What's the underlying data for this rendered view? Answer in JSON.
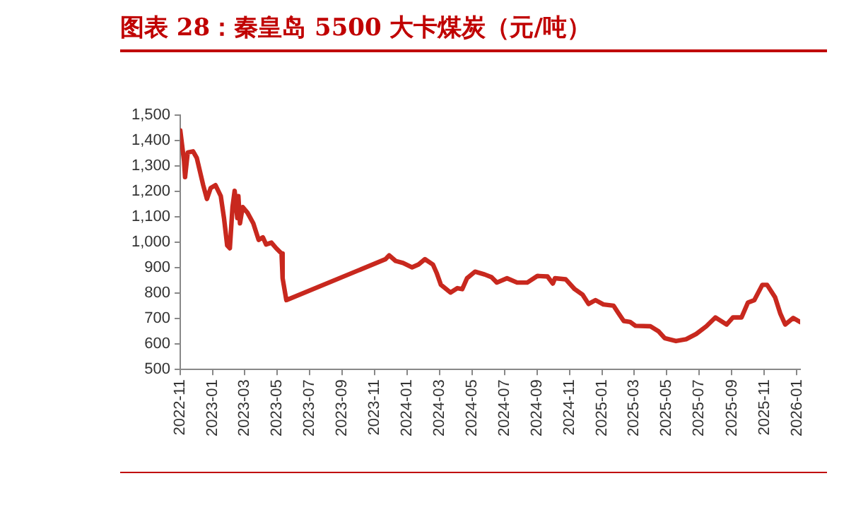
{
  "chart_data": {
    "type": "line",
    "title": "图表 28：秦皇岛 5500 大卡煤炭（元/吨）",
    "x": [
      "2022-11-01",
      "2022-11-08",
      "2022-11-10",
      "2022-11-15",
      "2022-11-25",
      "2022-12-02",
      "2022-12-14",
      "2022-12-21",
      "2022-12-28",
      "2023-01-06",
      "2023-01-16",
      "2023-01-22",
      "2023-01-28",
      "2023-02-02",
      "2023-02-07",
      "2023-02-11",
      "2023-02-16",
      "2023-02-18",
      "2023-02-21",
      "2023-02-26",
      "2023-03-07",
      "2023-03-18",
      "2023-03-28",
      "2023-04-05",
      "2023-04-11",
      "2023-04-21",
      "2023-04-30",
      "2023-05-10",
      "2023-05-12",
      "2023-05-19",
      "2023-11-21",
      "2023-11-28",
      "2023-12-10",
      "2023-12-24",
      "2024-01-10",
      "2024-01-22",
      "2024-02-03",
      "2024-02-18",
      "2024-02-25",
      "2024-03-04",
      "2024-03-22",
      "2024-04-04",
      "2024-04-13",
      "2024-04-22",
      "2024-05-07",
      "2024-05-25",
      "2024-06-07",
      "2024-06-17",
      "2024-07-06",
      "2024-07-25",
      "2024-08-13",
      "2024-09-01",
      "2024-09-20",
      "2024-09-30",
      "2024-10-04",
      "2024-10-24",
      "2024-11-10",
      "2024-11-25",
      "2024-12-06",
      "2024-12-19",
      "2025-01-03",
      "2025-01-22",
      "2025-02-01",
      "2025-02-10",
      "2025-02-22",
      "2025-03-04",
      "2025-04-01",
      "2025-04-16",
      "2025-04-28",
      "2025-05-19",
      "2025-06-07",
      "2025-06-26",
      "2025-07-15",
      "2025-08-01",
      "2025-08-22",
      "2025-09-03",
      "2025-09-19",
      "2025-10-01",
      "2025-10-13",
      "2025-10-28",
      "2025-11-06",
      "2025-11-21",
      "2025-12-01",
      "2025-12-10",
      "2025-12-25",
      "2026-01-07"
    ],
    "series": [
      {
        "color": "#c8281e",
        "values": [
          1440,
          1321,
          1257,
          1354,
          1358,
          1332,
          1225,
          1171,
          1214,
          1225,
          1182,
          1096,
          988,
          977,
          1139,
          1203,
          1096,
          1182,
          1075,
          1139,
          1117,
          1075,
          1010,
          1020,
          992,
          999,
          977,
          956,
          859,
          773,
          934,
          949,
          927,
          919,
          902,
          913,
          934,
          913,
          880,
          833,
          803,
          820,
          816,
          859,
          885,
          874,
          863,
          842,
          859,
          842,
          842,
          868,
          866,
          838,
          859,
          855,
          816,
          794,
          758,
          773,
          756,
          751,
          719,
          691,
          687,
          672,
          670,
          651,
          623,
          612,
          619,
          640,
          670,
          705,
          677,
          705,
          705,
          763,
          773,
          833,
          833,
          784,
          719,
          677,
          703,
          687
        ]
      }
    ],
    "xlim": [
      "2022-11-01",
      "2026-01-07"
    ],
    "xticks": [
      "2022-11",
      "2023-01",
      "2023-03",
      "2023-05",
      "2023-07",
      "2023-09",
      "2023-11",
      "2024-01",
      "2024-03",
      "2024-05",
      "2024-07",
      "2024-09",
      "2024-11",
      "2025-01",
      "2025-03",
      "2025-05",
      "2025-07",
      "2025-09",
      "2025-11",
      "2026-01"
    ],
    "ylim": [
      500,
      1500
    ],
    "yticks": [
      500,
      600,
      700,
      800,
      900,
      {
        "value": 1000,
        "label": "1,000"
      },
      {
        "value": 1100,
        "label": "1,100"
      },
      {
        "value": 1200,
        "label": "1,200"
      },
      {
        "value": 1300,
        "label": "1,300"
      },
      {
        "value": 1400,
        "label": "1,400"
      },
      {
        "value": 1500,
        "label": "1,500"
      }
    ],
    "grid": false,
    "legend": false,
    "marker": "none",
    "line_style": "solid"
  }
}
